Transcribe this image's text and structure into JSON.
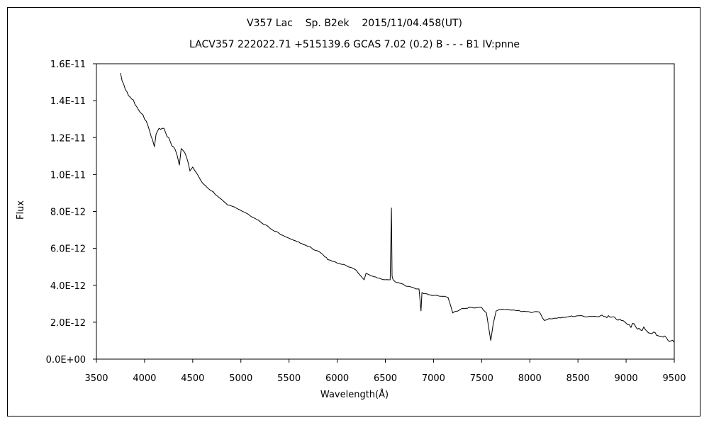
{
  "chart_data": {
    "type": "line",
    "title": "V357 Lac    Sp. B2ek    2015/11/04.458(UT)",
    "subtitle": "LACV357 222022.71 +515139.6 GCAS 7.02 (0.2) B - - - B1 IV:pnne",
    "xlabel": "Wavelength(Å)",
    "ylabel": "Flux",
    "xlim": [
      3500,
      9500
    ],
    "ylim": [
      0,
      1.6e-11
    ],
    "x_ticks": [
      3500,
      4000,
      4500,
      5000,
      5500,
      6000,
      6500,
      7000,
      7500,
      8000,
      8500,
      9000,
      9500
    ],
    "x_tick_labels": [
      "3500",
      "4000",
      "4500",
      "5000",
      "5500",
      "6000",
      "6500",
      "7000",
      "7500",
      "8000",
      "8500",
      "9000",
      "9500"
    ],
    "y_ticks": [
      0,
      2e-12,
      4e-12,
      6e-12,
      8e-12,
      1e-11,
      1.2e-11,
      1.4e-11,
      1.6e-11
    ],
    "y_tick_labels": [
      "0.0E+00",
      "2.0E-12",
      "4.0E-12",
      "6.0E-12",
      "8.0E-12",
      "1.0E-11",
      "1.2E-11",
      "1.4E-11",
      "1.6E-11"
    ],
    "grid": false,
    "legend": "none",
    "series": [
      {
        "x": [
          3750,
          3800,
          3850,
          3900,
          3950,
          4000,
          4050,
          4102,
          4120,
          4150,
          4200,
          4250,
          4300,
          4340,
          4361,
          4380,
          4400,
          4450,
          4471,
          4500,
          4550,
          4600,
          4700,
          4800,
          4861,
          4900,
          5000,
          5100,
          5200,
          5300,
          5400,
          5500,
          5600,
          5700,
          5800,
          5890,
          5900,
          6000,
          6100,
          6200,
          6280,
          6300,
          6400,
          6500,
          6550,
          6563,
          6570,
          6580,
          6600,
          6700,
          6800,
          6850,
          6870,
          6880,
          6900,
          7000,
          7100,
          7150,
          7200,
          7250,
          7300,
          7400,
          7500,
          7550,
          7595,
          7620,
          7650,
          7700,
          7800,
          7900,
          8000,
          8100,
          8150,
          8200,
          8300,
          8400,
          8500,
          8600,
          8700,
          8800,
          8900,
          9000,
          9100,
          9200,
          9300,
          9400,
          9450,
          9500
        ],
        "values": [
          1.55e-11,
          1.46e-11,
          1.42e-11,
          1.38e-11,
          1.34e-11,
          1.3e-11,
          1.24e-11,
          1.15e-11,
          1.22e-11,
          1.25e-11,
          1.25e-11,
          1.2e-11,
          1.15e-11,
          1.1e-11,
          1.05e-11,
          1.14e-11,
          1.13e-11,
          1.07e-11,
          1.02e-11,
          1.04e-11,
          1e-11,
          9.55e-12,
          9.1e-12,
          8.65e-12,
          8.35e-12,
          8.3e-12,
          8.05e-12,
          7.75e-12,
          7.45e-12,
          7.1e-12,
          6.8e-12,
          6.55e-12,
          6.35e-12,
          6.1e-12,
          5.85e-12,
          5.5e-12,
          5.4e-12,
          5.2e-12,
          5.05e-12,
          4.8e-12,
          4.3e-12,
          4.65e-12,
          4.45e-12,
          4.3e-12,
          4.3e-12,
          8.2e-12,
          4.5e-12,
          4.3e-12,
          4.2e-12,
          4e-12,
          3.85e-12,
          3.8e-12,
          2.6e-12,
          3.6e-12,
          3.55e-12,
          3.45e-12,
          3.4e-12,
          3.35e-12,
          2.5e-12,
          2.6e-12,
          2.75e-12,
          2.8e-12,
          2.8e-12,
          2.5e-12,
          1e-12,
          1.9e-12,
          2.6e-12,
          2.7e-12,
          2.65e-12,
          2.6e-12,
          2.55e-12,
          2.55e-12,
          2.1e-12,
          2.2e-12,
          2.25e-12,
          2.3e-12,
          2.35e-12,
          2.3e-12,
          2.3e-12,
          2.25e-12,
          2.15e-12,
          1.95e-12,
          1.75e-12,
          1.6e-12,
          1.45e-12,
          1.25e-12,
          9.5e-13,
          9e-13
        ]
      }
    ],
    "line_color": "#000000"
  }
}
